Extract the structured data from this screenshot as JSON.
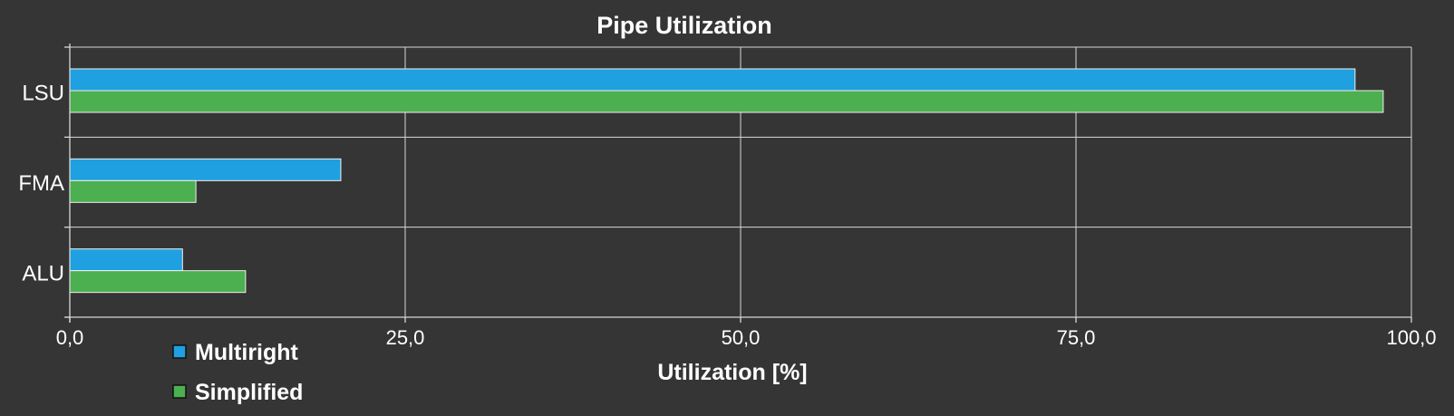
{
  "chart_data": {
    "type": "bar",
    "orientation": "horizontal",
    "title": "Pipe Utilization",
    "xlabel": "Utilization [%]",
    "ylabel": "",
    "categories": [
      "LSU",
      "FMA",
      "ALU"
    ],
    "series": [
      {
        "name": "Multiright",
        "color": "#1fa0e0",
        "values": [
          95.8,
          20.2,
          8.4
        ]
      },
      {
        "name": "Simplified",
        "color": "#4caf50",
        "values": [
          97.9,
          9.4,
          13.1
        ]
      }
    ],
    "xlim": [
      0,
      100
    ],
    "xticks": [
      0,
      25,
      50,
      75,
      100
    ],
    "xtick_labels": [
      "0,0",
      "25,0",
      "50,0",
      "75,0",
      "100,0"
    ],
    "grid": true,
    "legend_position": "bottom-left"
  }
}
